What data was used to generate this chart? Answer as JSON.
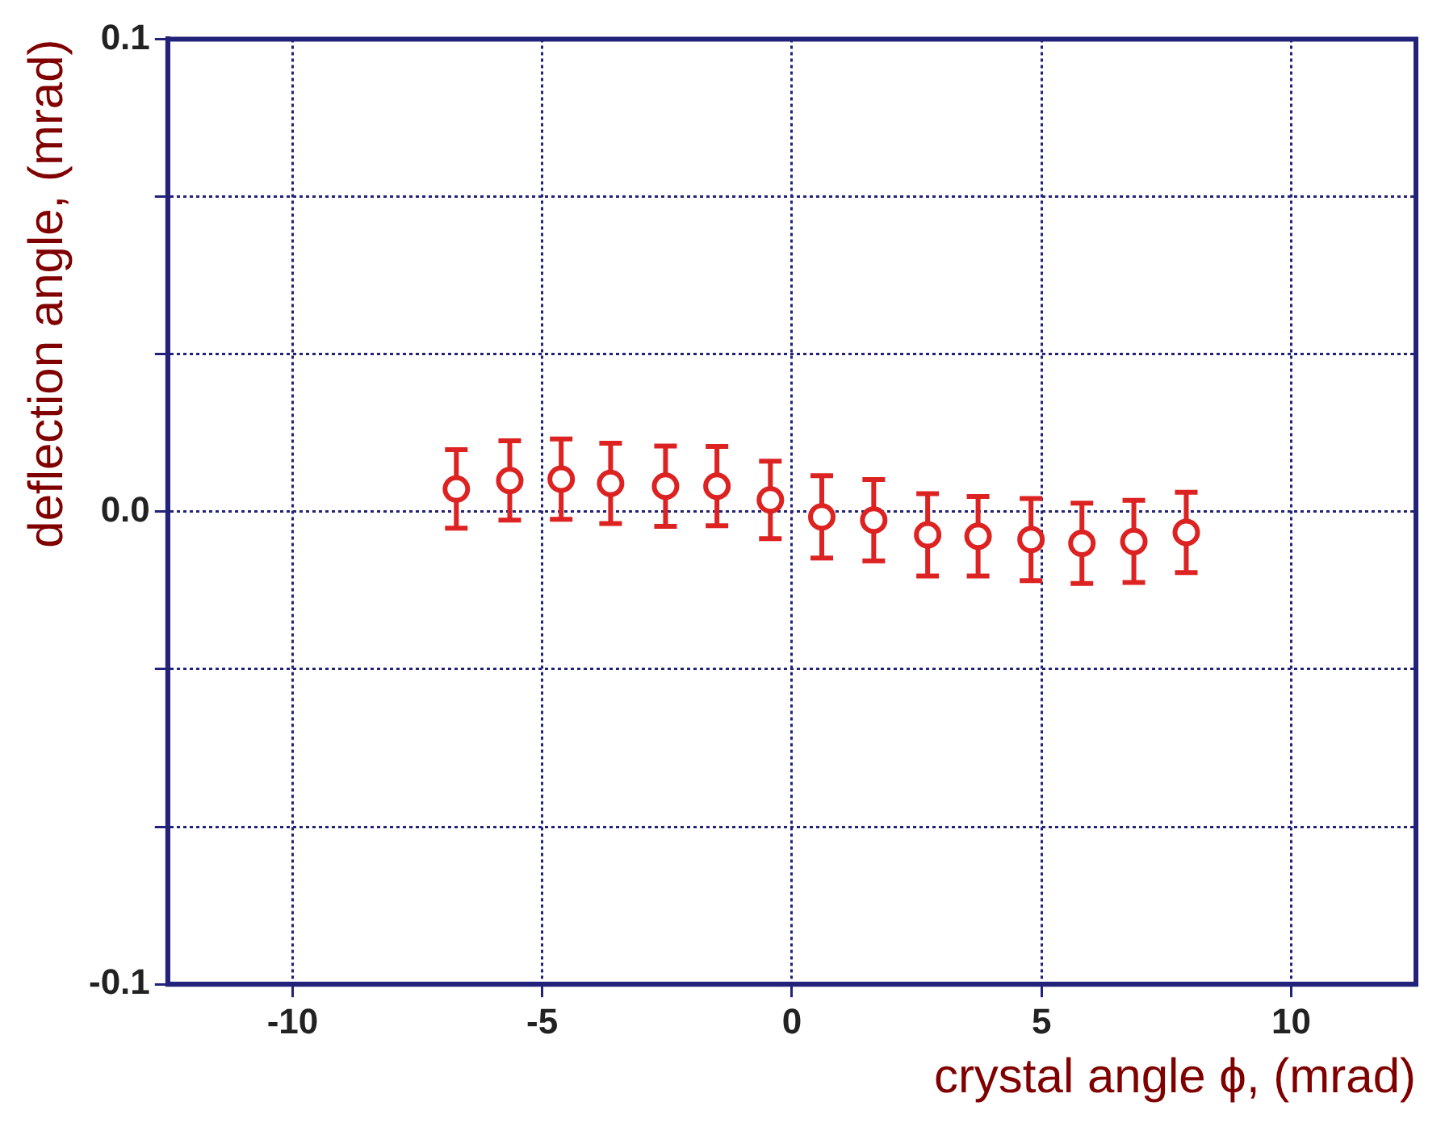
{
  "chart_data": {
    "type": "scatter",
    "xlabel": "crystal angle ϕ, (mrad)",
    "ylabel": "deflection angle, (mrad)",
    "x": [
      -6.72,
      -5.65,
      -4.62,
      -3.63,
      -2.53,
      -1.5,
      -0.43,
      0.6,
      1.64,
      2.72,
      3.73,
      4.79,
      5.81,
      6.85,
      7.9
    ],
    "series": [
      {
        "color": "#dd2222",
        "values": [
          0.0048,
          0.0066,
          0.0069,
          0.006,
          0.0054,
          0.0054,
          0.0025,
          -0.0011,
          -0.0018,
          -0.0049,
          -0.0052,
          -0.0059,
          -0.0067,
          -0.0063,
          -0.0044
        ],
        "errors": [
          0.0083,
          0.0084,
          0.0085,
          0.0085,
          0.0085,
          0.0084,
          0.0082,
          0.0087,
          0.0086,
          0.0087,
          0.0084,
          0.0087,
          0.0085,
          0.0087,
          0.0085
        ]
      }
    ],
    "xlim": [
      -12.5,
      12.5
    ],
    "xticks": [
      -10,
      -5,
      0,
      5,
      10
    ],
    "ylim": [
      -0.1,
      0.1
    ],
    "yticks": [
      {
        "value": -0.1,
        "label": "-0.1"
      },
      {
        "value": -0.0667,
        "label": null
      },
      {
        "value": -0.0333,
        "label": null
      },
      {
        "value": 0,
        "label": "0.0"
      },
      {
        "value": 0.0333,
        "label": null
      },
      {
        "value": 0.0667,
        "label": null
      },
      {
        "value": 0.1,
        "label": "0.1"
      }
    ],
    "grid": true,
    "marker": "circle"
  }
}
